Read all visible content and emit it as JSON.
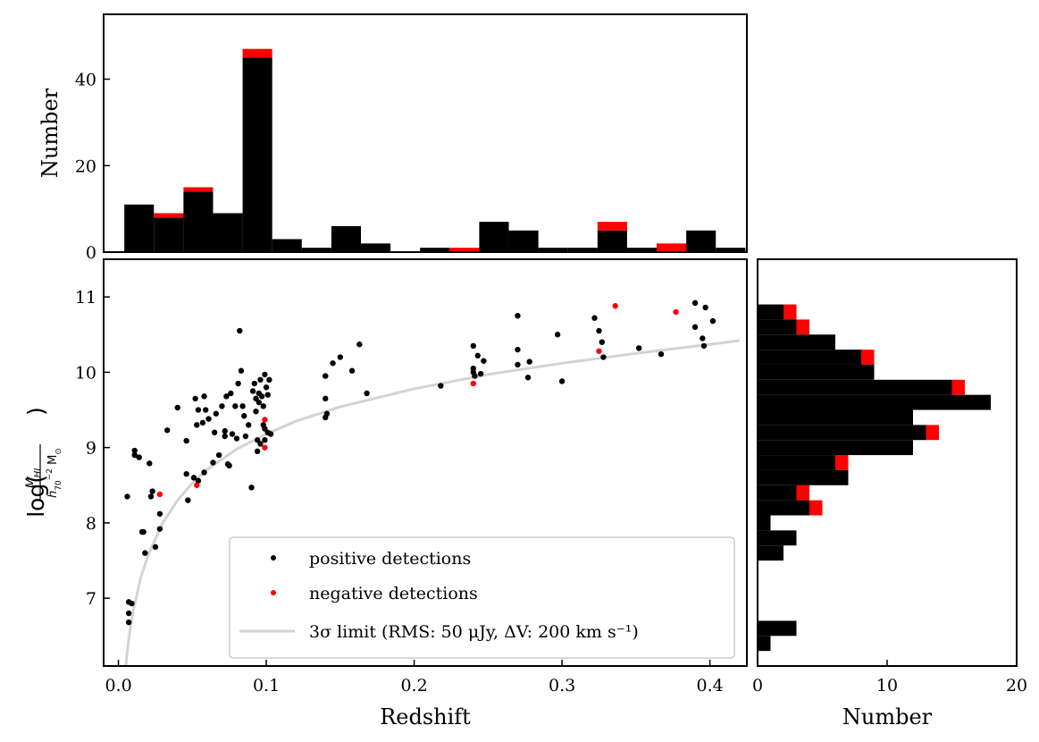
{
  "colors": {
    "positive": "#000000",
    "negative": "#ff0000",
    "limit_curve": "#d3d3d3"
  },
  "legend": {
    "positive": "positive detections",
    "negative": "negative detections",
    "limit": "3σ limit (RMS: 50 μJy, ΔV: 200 km s⁻¹)"
  },
  "chart_data": [
    {
      "type": "bar",
      "name": "top-histogram",
      "xlabel": "",
      "ylabel": "Number",
      "xlim": [
        -0.01,
        0.425
      ],
      "ylim": [
        0,
        55
      ],
      "yticks": [
        0,
        20,
        40
      ],
      "bin_edges": [
        0.004,
        0.024,
        0.044,
        0.064,
        0.084,
        0.104,
        0.124,
        0.144,
        0.164,
        0.184,
        0.204,
        0.224,
        0.244,
        0.264,
        0.284,
        0.304,
        0.324,
        0.344,
        0.364,
        0.384,
        0.404,
        0.424
      ],
      "series": [
        {
          "name": "positive detections",
          "values": [
            11,
            8,
            14,
            9,
            45,
            3,
            1,
            6,
            2,
            0,
            1,
            0,
            7,
            5,
            1,
            1,
            5,
            1,
            0,
            5,
            1
          ]
        },
        {
          "name": "negative detections",
          "values": [
            0,
            1,
            1,
            0,
            2,
            0,
            0,
            0,
            0,
            0,
            0,
            1,
            0,
            0,
            0,
            0,
            2,
            0,
            2,
            0,
            0
          ]
        }
      ],
      "stacked": true
    },
    {
      "type": "scatter",
      "name": "main-scatter",
      "xlabel": "Redshift",
      "ylabel": "log(M_HI / h70^-2 M_sun)",
      "xlim": [
        -0.01,
        0.425
      ],
      "ylim": [
        6.1,
        11.5
      ],
      "xticks": [
        "0.0",
        "0.1",
        "0.2",
        "0.3",
        "0.4"
      ],
      "yticks": [
        "7",
        "8",
        "9",
        "10",
        "11"
      ],
      "legend_position": "lower-right",
      "series": [
        {
          "name": "positive detections",
          "points": [
            [
              0.006,
              8.35
            ],
            [
              0.007,
              6.95
            ],
            [
              0.007,
              6.8
            ],
            [
              0.007,
              6.68
            ],
            [
              0.009,
              6.93
            ],
            [
              0.011,
              8.96
            ],
            [
              0.011,
              8.9
            ],
            [
              0.014,
              8.87
            ],
            [
              0.016,
              7.88
            ],
            [
              0.017,
              7.88
            ],
            [
              0.018,
              7.6
            ],
            [
              0.021,
              8.79
            ],
            [
              0.022,
              8.35
            ],
            [
              0.023,
              8.42
            ],
            [
              0.025,
              7.68
            ],
            [
              0.028,
              7.92
            ],
            [
              0.028,
              8.12
            ],
            [
              0.033,
              9.23
            ],
            [
              0.04,
              9.53
            ],
            [
              0.046,
              8.65
            ],
            [
              0.046,
              9.09
            ],
            [
              0.047,
              8.3
            ],
            [
              0.051,
              8.6
            ],
            [
              0.052,
              9.65
            ],
            [
              0.053,
              9.3
            ],
            [
              0.054,
              9.5
            ],
            [
              0.054,
              8.56
            ],
            [
              0.057,
              9.33
            ],
            [
              0.058,
              9.68
            ],
            [
              0.058,
              8.67
            ],
            [
              0.059,
              9.5
            ],
            [
              0.061,
              9.38
            ],
            [
              0.064,
              8.8
            ],
            [
              0.065,
              9.2
            ],
            [
              0.066,
              9.45
            ],
            [
              0.068,
              8.9
            ],
            [
              0.07,
              9.55
            ],
            [
              0.072,
              9.15
            ],
            [
              0.072,
              9.22
            ],
            [
              0.073,
              9.68
            ],
            [
              0.074,
              8.78
            ],
            [
              0.075,
              8.76
            ],
            [
              0.076,
              9.72
            ],
            [
              0.077,
              9.18
            ],
            [
              0.079,
              9.55
            ],
            [
              0.08,
              9.12
            ],
            [
              0.081,
              9.85
            ],
            [
              0.082,
              10.55
            ],
            [
              0.083,
              10.02
            ],
            [
              0.084,
              9.55
            ],
            [
              0.085,
              9.42
            ],
            [
              0.086,
              9.15
            ],
            [
              0.088,
              9.3
            ],
            [
              0.09,
              8.47
            ],
            [
              0.091,
              9.75
            ],
            [
              0.092,
              9.85
            ],
            [
              0.093,
              9.65
            ],
            [
              0.093,
              9.48
            ],
            [
              0.094,
              9.1
            ],
            [
              0.094,
              8.95
            ],
            [
              0.095,
              9.72
            ],
            [
              0.095,
              9.6
            ],
            [
              0.096,
              9.9
            ],
            [
              0.096,
              9.05
            ],
            [
              0.097,
              9.68
            ],
            [
              0.098,
              9.55
            ],
            [
              0.098,
              9.3
            ],
            [
              0.099,
              9.97
            ],
            [
              0.099,
              9.25
            ],
            [
              0.099,
              9.1
            ],
            [
              0.1,
              9.8
            ],
            [
              0.101,
              9.7
            ],
            [
              0.101,
              9.2
            ],
            [
              0.102,
              9.9
            ],
            [
              0.103,
              9.18
            ],
            [
              0.14,
              9.95
            ],
            [
              0.14,
              9.4
            ],
            [
              0.141,
              9.45
            ],
            [
              0.14,
              9.65
            ],
            [
              0.145,
              10.12
            ],
            [
              0.15,
              10.2
            ],
            [
              0.158,
              10.02
            ],
            [
              0.163,
              10.37
            ],
            [
              0.168,
              9.72
            ],
            [
              0.218,
              9.82
            ],
            [
              0.24,
              10.35
            ],
            [
              0.24,
              10.0
            ],
            [
              0.24,
              10.05
            ],
            [
              0.241,
              9.95
            ],
            [
              0.243,
              10.22
            ],
            [
              0.245,
              9.98
            ],
            [
              0.247,
              10.15
            ],
            [
              0.27,
              10.75
            ],
            [
              0.27,
              10.3
            ],
            [
              0.27,
              10.1
            ],
            [
              0.277,
              9.93
            ],
            [
              0.278,
              10.14
            ],
            [
              0.297,
              10.5
            ],
            [
              0.3,
              9.88
            ],
            [
              0.322,
              10.72
            ],
            [
              0.325,
              10.55
            ],
            [
              0.327,
              10.4
            ],
            [
              0.328,
              10.2
            ],
            [
              0.352,
              10.32
            ],
            [
              0.367,
              10.24
            ],
            [
              0.39,
              10.92
            ],
            [
              0.39,
              10.6
            ],
            [
              0.395,
              10.45
            ],
            [
              0.396,
              10.35
            ],
            [
              0.397,
              10.86
            ],
            [
              0.402,
              10.68
            ]
          ]
        },
        {
          "name": "negative detections",
          "points": [
            [
              0.028,
              8.38
            ],
            [
              0.053,
              8.5
            ],
            [
              0.099,
              9.37
            ],
            [
              0.099,
              9.0
            ],
            [
              0.24,
              9.85
            ],
            [
              0.325,
              10.28
            ],
            [
              0.336,
              10.88
            ],
            [
              0.377,
              10.8
            ]
          ]
        },
        {
          "name": "3σ limit (RMS: 50 μJy, ΔV: 200 km s⁻¹)",
          "curve": [
            [
              0.005,
              6.1
            ],
            [
              0.006,
              6.3
            ],
            [
              0.008,
              6.6
            ],
            [
              0.01,
              6.83
            ],
            [
              0.015,
              7.27
            ],
            [
              0.02,
              7.57
            ],
            [
              0.03,
              8.0
            ],
            [
              0.04,
              8.3
            ],
            [
              0.05,
              8.53
            ],
            [
              0.06,
              8.71
            ],
            [
              0.08,
              8.98
            ],
            [
              0.1,
              9.18
            ],
            [
              0.12,
              9.35
            ],
            [
              0.15,
              9.54
            ],
            [
              0.2,
              9.78
            ],
            [
              0.25,
              9.97
            ],
            [
              0.3,
              10.12
            ],
            [
              0.35,
              10.25
            ],
            [
              0.4,
              10.37
            ],
            [
              0.42,
              10.42
            ]
          ]
        }
      ]
    },
    {
      "type": "bar",
      "orientation": "horizontal",
      "name": "side-histogram",
      "xlabel": "Number",
      "ylabel": "",
      "xlim": [
        0,
        20
      ],
      "xticks": [
        "0",
        "10",
        "20"
      ],
      "ylim": [
        6.1,
        11.5
      ],
      "bin_edges": [
        6.3,
        6.5,
        6.7,
        6.9,
        7.1,
        7.3,
        7.5,
        7.7,
        7.9,
        8.1,
        8.3,
        8.5,
        8.7,
        8.9,
        9.1,
        9.3,
        9.5,
        9.7,
        9.9,
        10.1,
        10.3,
        10.5,
        10.7,
        10.9,
        11.1
      ],
      "series": [
        {
          "name": "positive detections",
          "values": [
            1,
            3,
            0,
            0,
            0,
            0,
            2,
            3,
            1,
            4,
            3,
            7,
            6,
            12,
            13,
            12,
            18,
            15,
            9,
            8,
            6,
            3,
            2,
            0
          ]
        },
        {
          "name": "negative detections",
          "values": [
            0,
            0,
            0,
            0,
            0,
            0,
            0,
            0,
            0,
            1,
            1,
            0,
            1,
            0,
            1,
            0,
            0,
            1,
            0,
            1,
            0,
            1,
            1,
            0
          ]
        }
      ],
      "stacked": true
    }
  ]
}
